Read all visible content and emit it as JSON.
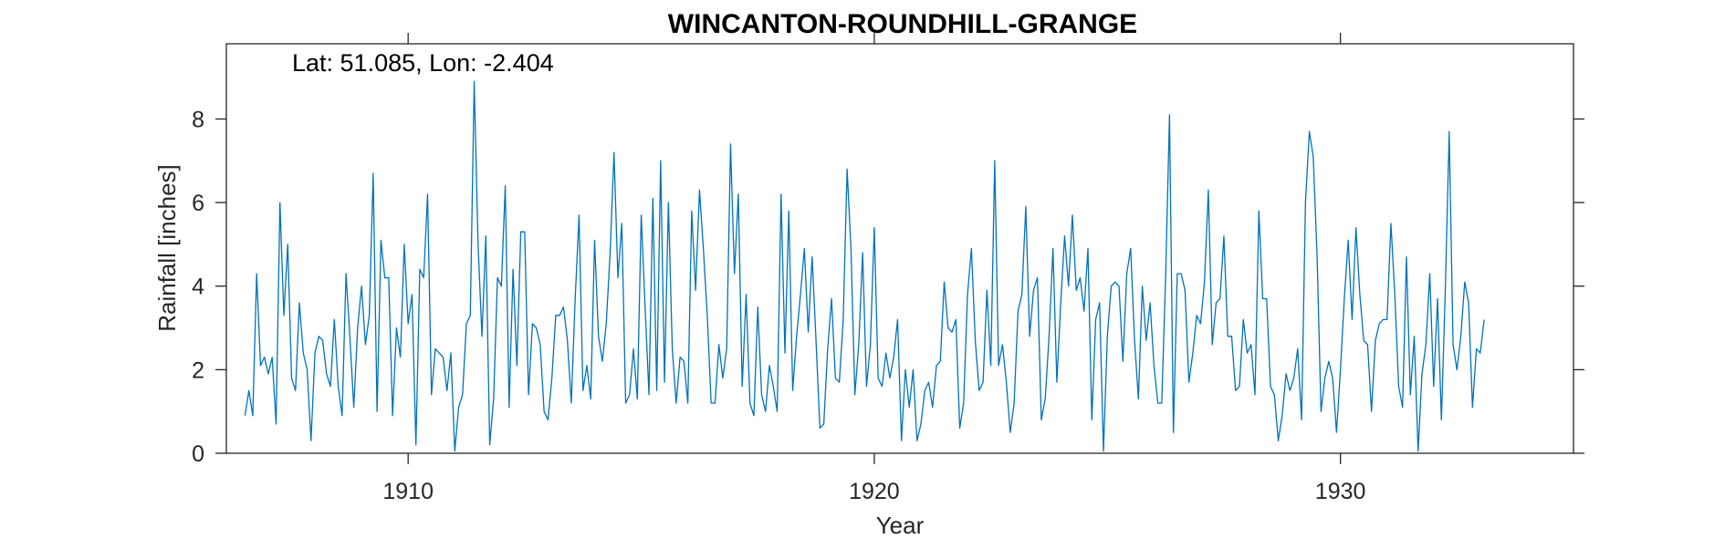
{
  "chart_data": {
    "type": "line",
    "title": "WINCANTON-ROUNDHILL-GRANGE",
    "annotation": "Lat: 51.085, Lon: -2.404",
    "xlabel": "Year",
    "ylabel": "Rainfall [inches]",
    "xlim": [
      1906.1,
      1935.0
    ],
    "ylim": [
      0,
      9.8
    ],
    "x_ticks": [
      1910,
      1920,
      1930
    ],
    "y_ticks": [
      0,
      2,
      4,
      6,
      8
    ],
    "grid": false,
    "line_color": "#0072BD",
    "series": [
      {
        "start_year": 1906.5,
        "step_years": 0.0833333,
        "values": [
          0.9,
          1.5,
          0.9,
          4.3,
          2.1,
          2.3,
          1.9,
          2.3,
          0.7,
          6.0,
          3.3,
          5.0,
          1.8,
          1.5,
          3.6,
          2.4,
          2.0,
          0.3,
          2.4,
          2.8,
          2.7,
          1.9,
          1.6,
          3.2,
          1.6,
          0.9,
          4.3,
          2.8,
          1.1,
          3.0,
          4.0,
          2.6,
          3.3,
          6.7,
          1.0,
          5.1,
          4.2,
          4.2,
          0.9,
          3.0,
          2.3,
          5.0,
          3.1,
          3.8,
          0.2,
          4.4,
          4.2,
          6.2,
          1.4,
          2.5,
          2.4,
          2.3,
          1.5,
          2.4,
          0.05,
          1.1,
          1.4,
          3.1,
          3.3,
          8.9,
          5.0,
          2.8,
          5.2,
          0.2,
          1.3,
          4.2,
          4.0,
          6.4,
          1.1,
          4.4,
          2.1,
          5.3,
          5.3,
          1.4,
          3.1,
          3.0,
          2.6,
          1.0,
          0.8,
          1.8,
          3.3,
          3.3,
          3.5,
          2.7,
          1.2,
          3.7,
          5.7,
          1.5,
          2.1,
          1.3,
          5.1,
          2.8,
          2.2,
          3.1,
          4.8,
          7.2,
          4.2,
          5.5,
          1.2,
          1.4,
          2.5,
          1.3,
          5.7,
          3.5,
          1.4,
          6.1,
          1.5,
          7.0,
          1.7,
          6.0,
          2.5,
          1.2,
          2.3,
          2.2,
          1.2,
          5.8,
          3.9,
          6.3,
          4.9,
          3.3,
          1.2,
          1.2,
          2.6,
          1.8,
          2.5,
          7.4,
          4.3,
          6.2,
          1.6,
          3.8,
          1.2,
          0.9,
          3.5,
          1.4,
          1.0,
          2.1,
          1.6,
          1.0,
          6.2,
          2.4,
          5.8,
          1.5,
          2.8,
          3.8,
          4.9,
          2.9,
          4.7,
          2.7,
          0.6,
          0.7,
          2.5,
          3.7,
          1.8,
          1.7,
          3.2,
          6.8,
          4.9,
          1.4,
          2.6,
          4.8,
          1.6,
          2.6,
          5.4,
          1.8,
          1.6,
          2.4,
          1.8,
          2.3,
          3.2,
          0.3,
          2.0,
          1.1,
          2.0,
          0.3,
          0.7,
          1.5,
          1.7,
          1.1,
          2.1,
          2.2,
          4.1,
          3.0,
          2.9,
          3.2,
          0.6,
          1.2,
          3.8,
          4.9,
          2.7,
          1.5,
          1.7,
          3.9,
          2.1,
          7.0,
          2.1,
          2.6,
          1.7,
          0.5,
          1.2,
          3.4,
          3.8,
          5.9,
          2.8,
          3.9,
          4.2,
          0.8,
          1.3,
          2.8,
          4.9,
          1.7,
          3.6,
          5.2,
          4.0,
          5.7,
          3.9,
          4.2,
          3.4,
          4.9,
          0.8,
          3.2,
          3.6,
          0.05,
          2.8,
          4.0,
          4.1,
          4.0,
          2.2,
          4.3,
          4.9,
          2.7,
          1.3,
          4.0,
          2.7,
          3.6,
          2.1,
          1.2,
          1.2,
          4.2,
          8.1,
          0.5,
          4.3,
          4.3,
          3.9,
          1.7,
          2.4,
          3.3,
          3.1,
          4.1,
          6.3,
          2.6,
          3.6,
          3.7,
          5.2,
          2.8,
          2.8,
          1.5,
          1.6,
          3.2,
          2.4,
          2.6,
          1.4,
          5.8,
          3.7,
          3.7,
          1.6,
          1.4,
          0.3,
          0.9,
          1.9,
          1.5,
          1.8,
          2.5,
          0.8,
          6.0,
          7.7,
          7.1,
          4.7,
          1.0,
          1.8,
          2.2,
          1.8,
          0.5,
          2.0,
          3.7,
          5.1,
          3.2,
          5.4,
          3.8,
          2.7,
          2.6,
          1.0,
          2.7,
          3.1,
          3.2,
          3.2,
          5.5,
          3.8,
          1.6,
          1.1,
          4.7,
          1.4,
          2.8,
          0.05,
          1.9,
          2.6,
          4.3,
          1.6,
          3.7,
          0.8,
          3.9,
          7.7,
          2.6,
          2.0,
          2.8,
          4.1,
          3.6,
          1.1,
          2.5,
          2.4,
          3.2
        ]
      }
    ]
  }
}
